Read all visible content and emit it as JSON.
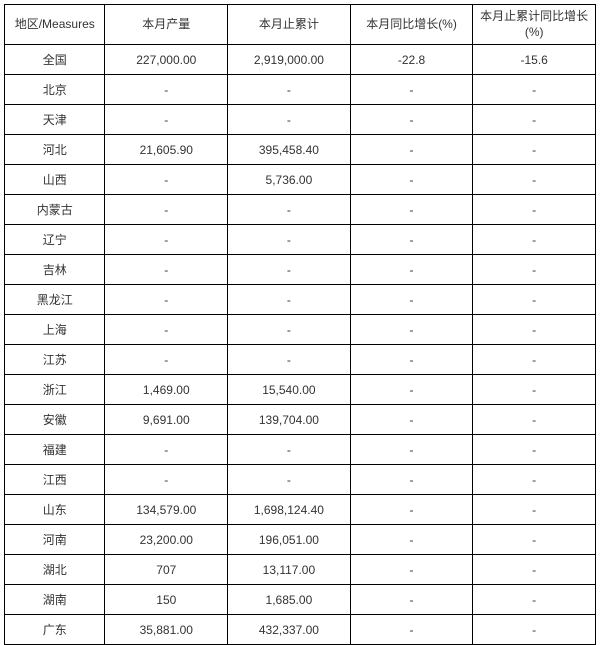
{
  "table": {
    "columns": [
      "地区/Measures",
      "本月产量",
      "本月止累计",
      "本月同比增长(%)",
      "本月止累计同比增长(%)"
    ],
    "rows": [
      [
        "全国",
        "227,000.00",
        "2,919,000.00",
        "-22.8",
        "-15.6"
      ],
      [
        "北京",
        "-",
        "-",
        "-",
        "-"
      ],
      [
        "天津",
        "-",
        "-",
        "-",
        "-"
      ],
      [
        "河北",
        "21,605.90",
        "395,458.40",
        "-",
        "-"
      ],
      [
        "山西",
        "-",
        "5,736.00",
        "-",
        "-"
      ],
      [
        "内蒙古",
        "-",
        "-",
        "-",
        "-"
      ],
      [
        "辽宁",
        "-",
        "-",
        "-",
        "-"
      ],
      [
        "吉林",
        "-",
        "-",
        "-",
        "-"
      ],
      [
        "黑龙江",
        "-",
        "-",
        "-",
        "-"
      ],
      [
        "上海",
        "-",
        "-",
        "-",
        "-"
      ],
      [
        "江苏",
        "-",
        "-",
        "-",
        "-"
      ],
      [
        "浙江",
        "1,469.00",
        "15,540.00",
        "-",
        "-"
      ],
      [
        "安徽",
        "9,691.00",
        "139,704.00",
        "-",
        "-"
      ],
      [
        "福建",
        "-",
        "-",
        "-",
        "-"
      ],
      [
        "江西",
        "-",
        "-",
        "-",
        "-"
      ],
      [
        "山东",
        "134,579.00",
        "1,698,124.40",
        "-",
        "-"
      ],
      [
        "河南",
        "23,200.00",
        "196,051.00",
        "-",
        "-"
      ],
      [
        "湖北",
        "707",
        "13,117.00",
        "-",
        "-"
      ],
      [
        "湖南",
        "150",
        "1,685.00",
        "-",
        "-"
      ],
      [
        "广东",
        "35,881.00",
        "432,337.00",
        "-",
        "-"
      ]
    ],
    "border_color": "#000000",
    "text_color": "#333333",
    "background_color": "#ffffff",
    "font_size": 12
  }
}
